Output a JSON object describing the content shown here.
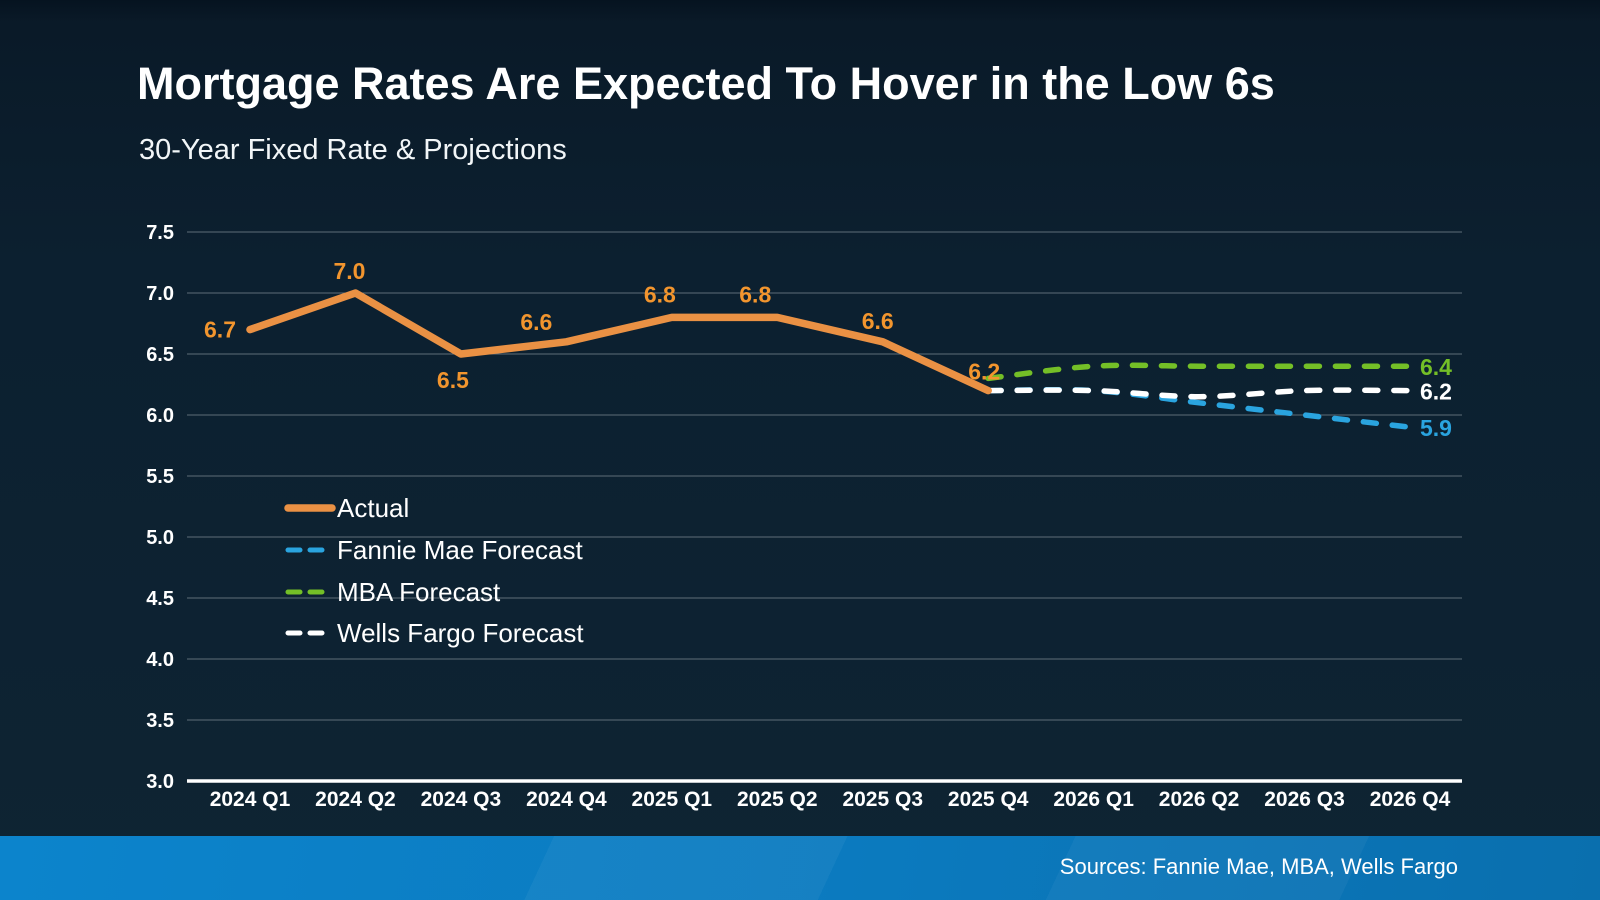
{
  "slide": {
    "title": "Mortgage Rates Are Expected To Hover in the Low 6s",
    "subtitle": "30-Year Fixed Rate & Projections",
    "sources": "Sources: Fannie Mae, MBA, Wells Fargo"
  },
  "colors": {
    "background": "#0C2030",
    "title_text": "#FFFFFF",
    "axis_text": "#FFFFFF",
    "gridline": "#5E6D78",
    "axis_line": "#FFFFFF",
    "actual": "#EA9144",
    "actual_label": "#F2952E",
    "fannie_mae": "#2AA4DF",
    "mba": "#74BF27",
    "wells_fargo": "#FFFFFF",
    "footer_bar_start": "#0C84CC",
    "footer_bar_end": "#0A6FAE"
  },
  "chart_data": {
    "type": "line",
    "title": "30-Year Fixed Rate & Projections",
    "categories": [
      "2024 Q1",
      "2024 Q2",
      "2024 Q3",
      "2024 Q4",
      "2025 Q1",
      "2025 Q2",
      "2025 Q3",
      "2025 Q4",
      "2026 Q1",
      "2026 Q2",
      "2026 Q3",
      "2026 Q4"
    ],
    "ylim": [
      3.0,
      7.5
    ],
    "ytick_labels": [
      "7.5",
      "7.0",
      "6.5",
      "6.0",
      "5.5",
      "5.0",
      "4.5",
      "4.0",
      "3.5",
      "3.0"
    ],
    "grid": true,
    "legend_position": "inside-left",
    "series": [
      {
        "name": "Actual",
        "line_style": "solid",
        "color_key": "actual",
        "start_index": 0,
        "values": [
          6.7,
          7.0,
          6.5,
          6.6,
          6.8,
          6.8,
          6.6,
          6.2
        ],
        "point_labels": [
          "6.7",
          "7.0",
          "6.5",
          "6.6",
          "6.8",
          "6.8",
          "6.6",
          "6.2"
        ]
      },
      {
        "name": "Fannie Mae Forecast",
        "line_style": "dashed",
        "color_key": "fannie_mae",
        "start_index": 7,
        "values": [
          6.2,
          6.2,
          6.1,
          6.0,
          5.9
        ],
        "end_label": "5.9"
      },
      {
        "name": "MBA Forecast",
        "line_style": "dashed",
        "color_key": "mba",
        "start_index": 7,
        "values": [
          6.3,
          6.4,
          6.4,
          6.4,
          6.4
        ],
        "end_label": "6.4"
      },
      {
        "name": "Wells Fargo Forecast",
        "line_style": "dashed",
        "color_key": "wells_fargo",
        "start_index": 7,
        "values": [
          6.2,
          6.2,
          6.15,
          6.2,
          6.2
        ],
        "end_label": "6.2"
      }
    ],
    "legend": [
      "Actual",
      "Fannie Mae Forecast",
      "MBA Forecast",
      "Wells Fargo Forecast"
    ]
  }
}
